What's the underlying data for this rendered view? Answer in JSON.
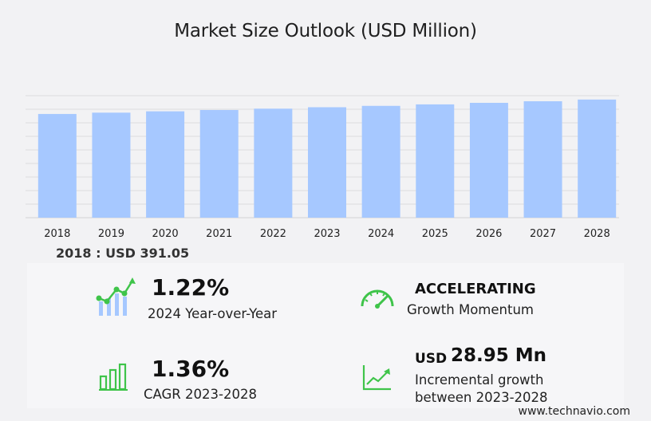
{
  "title": "Market Size Outlook (USD Million)",
  "chart_data": {
    "type": "bar",
    "categories": [
      "2018",
      "2019",
      "2020",
      "2021",
      "2022",
      "2023",
      "2024",
      "2025",
      "2026",
      "2027",
      "2028"
    ],
    "values": [
      391.05,
      396.0,
      401.0,
      406.0,
      411.0,
      416.5,
      421.6,
      427.2,
      433.0,
      439.0,
      445.45
    ],
    "ylim": [
      0,
      460
    ],
    "grid": true,
    "bar_color": "#a6c8ff",
    "grid_color": "#dcdcde"
  },
  "base_label": "2018 : USD  391.05",
  "stats": {
    "yoy": {
      "value": "1.22%",
      "label": "2024 Year-over-Year"
    },
    "momentum": {
      "head": "ACCELERATING",
      "label": "Growth Momentum"
    },
    "cagr": {
      "value": "1.36%",
      "label": "CAGR 2023-2028"
    },
    "incremental": {
      "prefix": "USD",
      "value": "28.95 Mn",
      "label_line1": "Incremental growth",
      "label_line2": "between 2023-2028"
    }
  },
  "icon_color": "#3fc44a",
  "footer": "www.technavio.com"
}
